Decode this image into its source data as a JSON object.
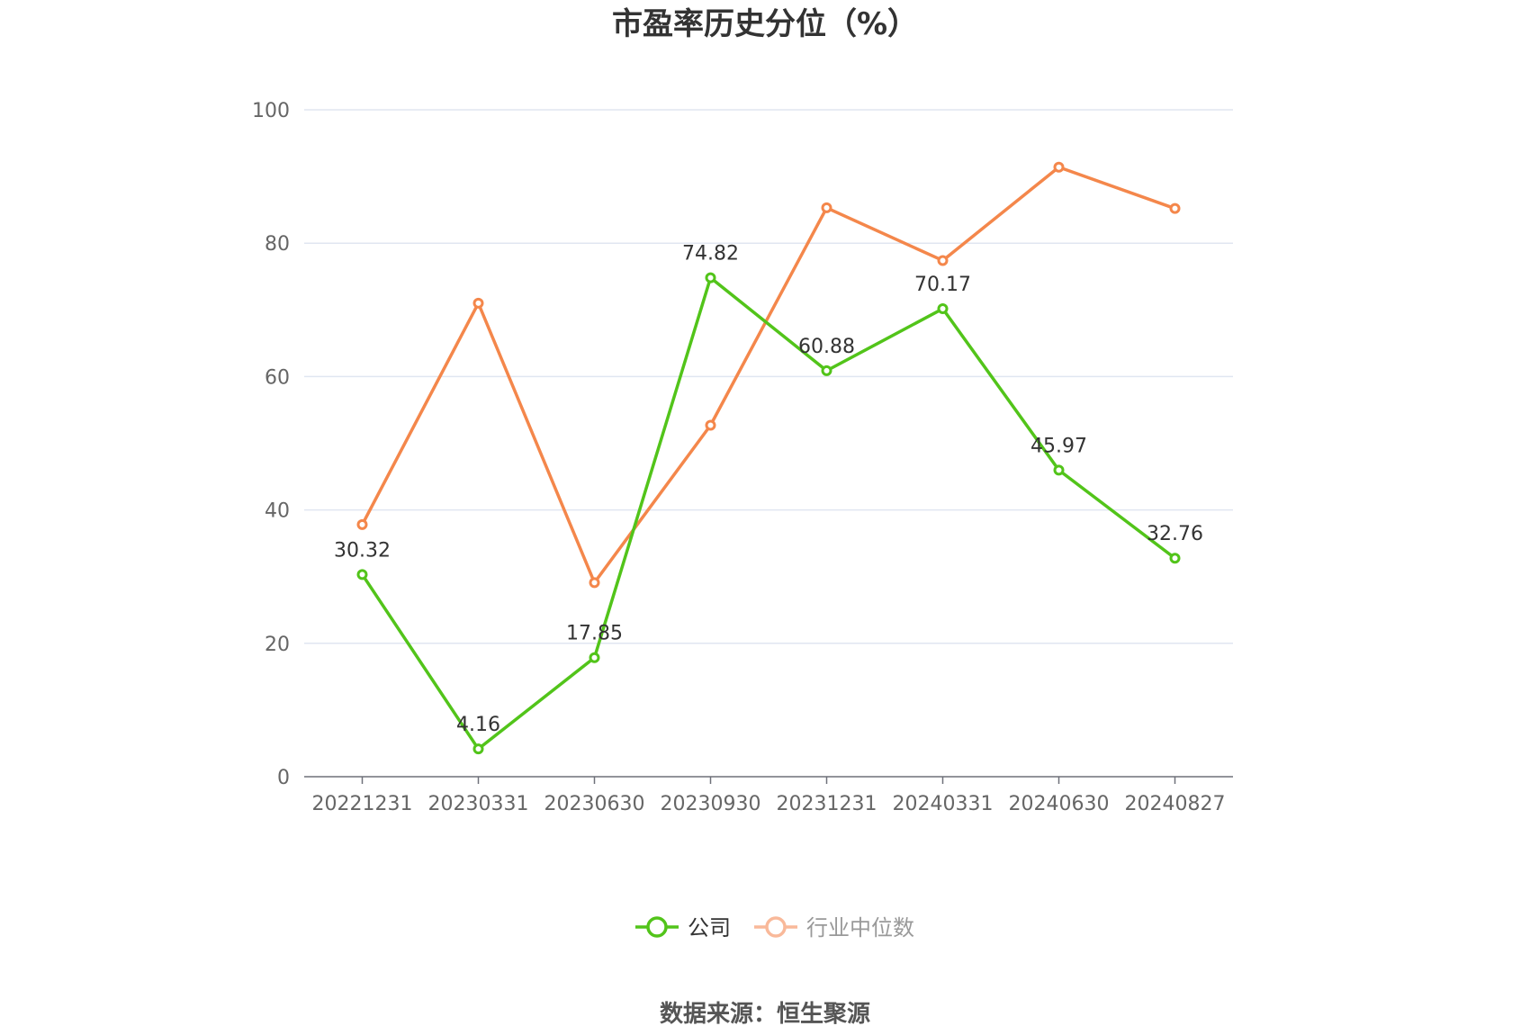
{
  "chart_data": {
    "type": "line",
    "title": "市盈率历史分位（%）",
    "categories": [
      "20221231",
      "20230331",
      "20230630",
      "20230930",
      "20231231",
      "20240331",
      "20240630",
      "20240827"
    ],
    "series": [
      {
        "name": "公司",
        "color": "#52c41a",
        "values": [
          30.32,
          4.16,
          17.85,
          74.82,
          60.88,
          70.17,
          45.97,
          32.76
        ],
        "labels": [
          "30.32",
          "4.16",
          "17.85",
          "74.82",
          "60.88",
          "70.17",
          "45.97",
          "32.76"
        ],
        "show_labels": true
      },
      {
        "name": "行业中位数",
        "color": "#f4874b",
        "legend_color": "#f9b99a",
        "values": [
          37.8,
          71.0,
          29.1,
          52.7,
          85.3,
          77.4,
          91.4,
          85.2
        ],
        "show_labels": false
      }
    ],
    "ylim": [
      0,
      100
    ],
    "yticks": [
      0,
      20,
      40,
      60,
      80,
      100
    ],
    "grid": true,
    "legend_position": "bottom-center"
  },
  "source": "数据来源：恒生聚源"
}
